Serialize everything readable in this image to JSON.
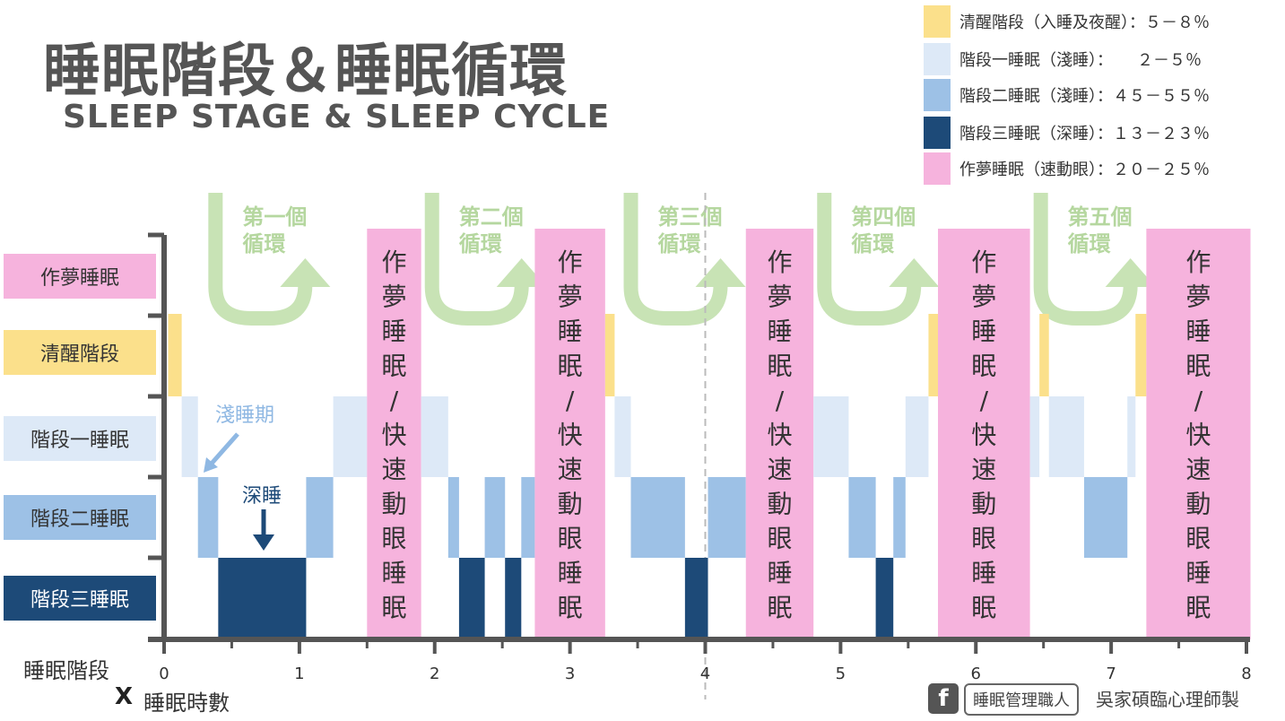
{
  "title": "睡眠階段＆睡眠循環",
  "subtitle": "SLEEP STAGE & SLEEP CYCLE",
  "legend": [
    {
      "label": "清醒階段（入睡及夜醒）：５－８％",
      "color": "#fbe08b"
    },
    {
      "label": "階段一睡眠（淺睡）：　　２－５％",
      "color": "#dde9f7"
    },
    {
      "label": "階段二睡眠（淺睡）：４５－５５％",
      "color": "#9dc1e6"
    },
    {
      "label": "階段三睡眠（深睡）：１３－２３％",
      "color": "#1d4a78"
    },
    {
      "label": "作夢睡眠（速動眼）：２０－２５％",
      "color": "#f6b3dd"
    }
  ],
  "stage_labels": [
    {
      "label": "作夢睡眠",
      "color": "#f6b3dd",
      "text_color": "#333333"
    },
    {
      "label": "清醒階段",
      "color": "#fbe08b",
      "text_color": "#333333"
    },
    {
      "label": "階段一睡眠",
      "color": "#dde9f7",
      "text_color": "#333333"
    },
    {
      "label": "階段二睡眠",
      "color": "#9dc1e6",
      "text_color": "#333333"
    },
    {
      "label": "階段三睡眠",
      "color": "#1d4a78",
      "text_color": "#ffffff"
    }
  ],
  "cycles": [
    "第一個循環",
    "第二個循環",
    "第三個循環",
    "第四個循環",
    "第五個循環"
  ],
  "rem_text": "作夢睡眠/快速動眼睡眠",
  "annotations": {
    "light_sleep": "淺睡期",
    "deep_sleep": "深睡"
  },
  "axis": {
    "x_title": "睡眠時數",
    "x_mark": "X",
    "y_title": "睡眠階段"
  },
  "footer": {
    "fb_icon": "f",
    "brand": "睡眠管理職人",
    "author": "吳家碩臨心理師製"
  },
  "chart_data": {
    "type": "bar",
    "x_unit": "睡眠時數",
    "xlim": [
      0,
      8
    ],
    "x_ticks": [
      0,
      1,
      2,
      3,
      4,
      5,
      6,
      7,
      8
    ],
    "dashed_line_x": 4,
    "stages": [
      "作夢睡眠",
      "清醒階段",
      "階段一睡眠",
      "階段二睡眠",
      "階段三睡眠"
    ],
    "segments": [
      {
        "stage": "清醒階段",
        "start": 0.03,
        "end": 0.13
      },
      {
        "stage": "階段一睡眠",
        "start": 0.13,
        "end": 0.25
      },
      {
        "stage": "階段二睡眠",
        "start": 0.25,
        "end": 0.4
      },
      {
        "stage": "階段三睡眠",
        "start": 0.4,
        "end": 1.05
      },
      {
        "stage": "階段二睡眠",
        "start": 1.05,
        "end": 1.25
      },
      {
        "stage": "階段一睡眠",
        "start": 1.25,
        "end": 1.5
      },
      {
        "stage": "作夢睡眠",
        "start": 1.5,
        "end": 1.9
      },
      {
        "stage": "階段一睡眠",
        "start": 1.9,
        "end": 2.1
      },
      {
        "stage": "階段二睡眠",
        "start": 2.1,
        "end": 2.18
      },
      {
        "stage": "階段三睡眠",
        "start": 2.18,
        "end": 2.37
      },
      {
        "stage": "階段二睡眠",
        "start": 2.37,
        "end": 2.52
      },
      {
        "stage": "階段三睡眠",
        "start": 2.52,
        "end": 2.64
      },
      {
        "stage": "階段二睡眠",
        "start": 2.64,
        "end": 2.74
      },
      {
        "stage": "作夢睡眠",
        "start": 2.74,
        "end": 3.26
      },
      {
        "stage": "清醒階段",
        "start": 3.26,
        "end": 3.33
      },
      {
        "stage": "階段一睡眠",
        "start": 3.33,
        "end": 3.45
      },
      {
        "stage": "階段二睡眠",
        "start": 3.45,
        "end": 3.85
      },
      {
        "stage": "階段三睡眠",
        "start": 3.85,
        "end": 4.02
      },
      {
        "stage": "階段二睡眠",
        "start": 4.02,
        "end": 4.3
      },
      {
        "stage": "作夢睡眠",
        "start": 4.3,
        "end": 4.8
      },
      {
        "stage": "階段一睡眠",
        "start": 4.8,
        "end": 5.06
      },
      {
        "stage": "階段二睡眠",
        "start": 5.06,
        "end": 5.26
      },
      {
        "stage": "階段三睡眠",
        "start": 5.26,
        "end": 5.39
      },
      {
        "stage": "階段二睡眠",
        "start": 5.39,
        "end": 5.48
      },
      {
        "stage": "階段一睡眠",
        "start": 5.48,
        "end": 5.65
      },
      {
        "stage": "清醒階段",
        "start": 5.65,
        "end": 5.72
      },
      {
        "stage": "作夢睡眠",
        "start": 5.72,
        "end": 6.4
      },
      {
        "stage": "階段一睡眠",
        "start": 6.4,
        "end": 6.47
      },
      {
        "stage": "清醒階段",
        "start": 6.47,
        "end": 6.54
      },
      {
        "stage": "階段一睡眠",
        "start": 6.54,
        "end": 6.8
      },
      {
        "stage": "階段二睡眠",
        "start": 6.8,
        "end": 7.12
      },
      {
        "stage": "階段一睡眠",
        "start": 7.12,
        "end": 7.18
      },
      {
        "stage": "清醒階段",
        "start": 7.18,
        "end": 7.26
      },
      {
        "stage": "作夢睡眠",
        "start": 7.26,
        "end": 8.03
      }
    ]
  }
}
